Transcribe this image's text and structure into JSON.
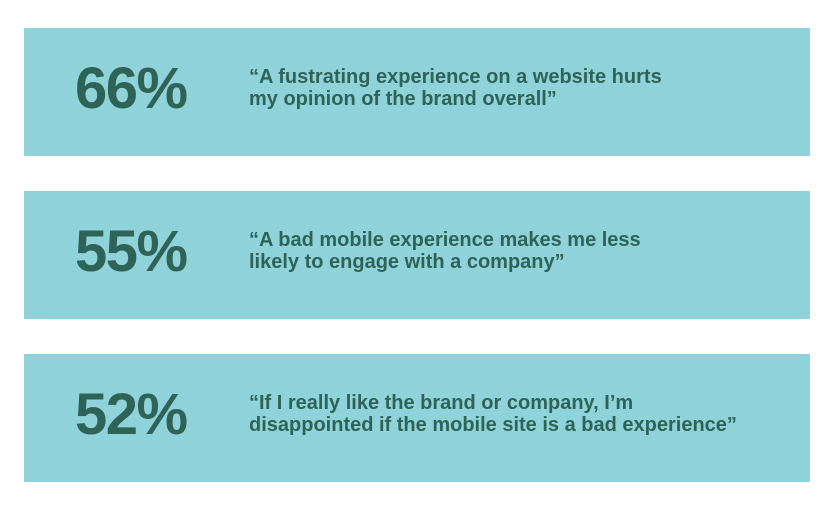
{
  "colors": {
    "page_background": "#ffffff",
    "bar_background": "#8fd2da",
    "text": "#2e6357"
  },
  "chart_data": {
    "type": "table",
    "title": "",
    "unit": "%",
    "values": [
      66,
      55,
      52
    ],
    "labels": [
      "“A fustrating experience on a website hurts my opinion of the brand overall”",
      "“A bad mobile experience makes me less likely to engage with a company”",
      "“If I really like the brand or company, I’m disappointed if the mobile site is a bad experience”"
    ]
  },
  "stats": [
    {
      "percent": "66%",
      "quote_lines": [
        "“A fustrating experience on a website hurts",
        "my opinion of the brand overall”"
      ]
    },
    {
      "percent": "55%",
      "quote_lines": [
        "“A bad mobile experience makes me less",
        "likely to engage with a company”"
      ]
    },
    {
      "percent": "52%",
      "quote_lines": [
        "“If I really like the brand or company, I’m",
        "disappointed if the mobile site is a bad experience”"
      ]
    }
  ]
}
